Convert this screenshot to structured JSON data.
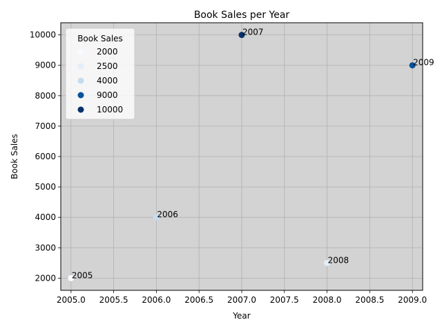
{
  "chart_data": {
    "type": "scatter",
    "title": "Book Sales per Year",
    "xlabel": "Year",
    "ylabel": "Book Sales",
    "xlim": [
      2004.88,
      2009.12
    ],
    "ylim": [
      1600,
      10400
    ],
    "xticks": [
      2005.0,
      2005.5,
      2006.0,
      2006.5,
      2007.0,
      2007.5,
      2008.0,
      2008.5,
      2009.0
    ],
    "xtick_labels": [
      "2005.0",
      "2005.5",
      "2006.0",
      "2006.5",
      "2007.0",
      "2007.5",
      "2008.0",
      "2008.5",
      "2009.0"
    ],
    "yticks": [
      2000,
      3000,
      4000,
      5000,
      6000,
      7000,
      8000,
      9000,
      10000
    ],
    "ytick_labels": [
      "2000",
      "3000",
      "4000",
      "5000",
      "6000",
      "7000",
      "8000",
      "9000",
      "10000"
    ],
    "grid": true,
    "background": "#d3d3d3",
    "points": [
      {
        "x": 2005,
        "y": 2000,
        "label": "2005",
        "color": "#f7fbff"
      },
      {
        "x": 2006,
        "y": 4000,
        "label": "2006",
        "color": "#c6dbef"
      },
      {
        "x": 2007,
        "y": 10000,
        "label": "2007",
        "color": "#08306b"
      },
      {
        "x": 2008,
        "y": 2500,
        "label": "2008",
        "color": "#e3eef9"
      },
      {
        "x": 2009,
        "y": 9000,
        "label": "2009",
        "color": "#08519c"
      }
    ],
    "legend": {
      "title": "Book Sales",
      "position": "top-left",
      "entries": [
        {
          "label": "2000",
          "color": "#f7fbff"
        },
        {
          "label": "2500",
          "color": "#e3eef9"
        },
        {
          "label": "4000",
          "color": "#c6dbef"
        },
        {
          "label": "9000",
          "color": "#08519c"
        },
        {
          "label": "10000",
          "color": "#08306b"
        }
      ]
    }
  }
}
